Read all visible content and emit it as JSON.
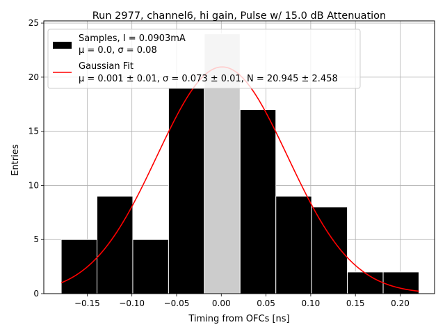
{
  "chart_data": {
    "type": "bar",
    "title": "Run 2977, channel6, hi gain, Pulse w/ 15.0 dB Attenuation",
    "xlabel": "Timing from OFCs [ns]",
    "ylabel": "Entries",
    "xlim": [
      -0.1985,
      0.2385
    ],
    "ylim": [
      0,
      25.2
    ],
    "grid": true,
    "legend_position": "upper-left",
    "colors": {
      "bars": "#000000",
      "fit": "#ff0000",
      "grid": "#b0b0b0"
    },
    "xticks": [
      {
        "value": -0.15,
        "label": "−0.15"
      },
      {
        "value": -0.1,
        "label": "−0.10"
      },
      {
        "value": -0.05,
        "label": "−0.05"
      },
      {
        "value": 0.0,
        "label": "0.00"
      },
      {
        "value": 0.05,
        "label": "0.05"
      },
      {
        "value": 0.1,
        "label": "0.10"
      },
      {
        "value": 0.15,
        "label": "0.15"
      },
      {
        "value": 0.2,
        "label": "0.20"
      }
    ],
    "yticks": [
      {
        "value": 0,
        "label": "0"
      },
      {
        "value": 5,
        "label": "5"
      },
      {
        "value": 10,
        "label": "10"
      },
      {
        "value": 15,
        "label": "15"
      },
      {
        "value": 20,
        "label": "20"
      },
      {
        "value": 25,
        "label": "25"
      }
    ],
    "bins": [
      {
        "low": -0.179,
        "high": -0.139,
        "count": 5,
        "highlighted": false
      },
      {
        "low": -0.139,
        "high": -0.099,
        "count": 9,
        "highlighted": false
      },
      {
        "low": -0.099,
        "high": -0.059,
        "count": 5,
        "highlighted": false
      },
      {
        "low": -0.059,
        "high": -0.019,
        "count": 19,
        "highlighted": false
      },
      {
        "low": -0.019,
        "high": 0.021,
        "count": 24,
        "highlighted": true
      },
      {
        "low": 0.021,
        "high": 0.061,
        "count": 17,
        "highlighted": false
      },
      {
        "low": 0.061,
        "high": 0.101,
        "count": 9,
        "highlighted": false
      },
      {
        "low": 0.101,
        "high": 0.141,
        "count": 8,
        "highlighted": false
      },
      {
        "low": 0.141,
        "high": 0.181,
        "count": 2,
        "highlighted": false
      },
      {
        "low": 0.181,
        "high": 0.221,
        "count": 2,
        "highlighted": false
      }
    ],
    "fit": {
      "mu": 0.001,
      "sigma": 0.073,
      "N": 20.945,
      "x_range": [
        -0.179,
        0.221
      ]
    },
    "legend": [
      {
        "kind": "bar",
        "line1": "Samples, I = 0.0903mA",
        "line2": "μ = 0.0, σ = 0.08"
      },
      {
        "kind": "line",
        "line1": "Gaussian Fit",
        "line2": "μ = 0.001 ± 0.01, σ = 0.073 ± 0.01, N = 20.945 ± 2.458"
      }
    ]
  }
}
